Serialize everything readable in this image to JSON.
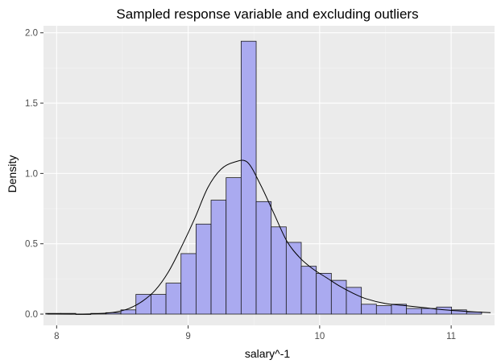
{
  "chart_data": {
    "type": "bar",
    "title": "Sampled response variable and excluding outliers",
    "xlabel": "salary^-1",
    "ylabel": "Density",
    "xlim": [
      7.9,
      11.33
    ],
    "ylim": [
      -0.08,
      2.05
    ],
    "xticks": [
      "8",
      "9",
      "10",
      "11"
    ],
    "xtick_values": [
      8,
      9,
      10,
      11
    ],
    "yticks": [
      "0.0",
      "0.5",
      "1.0",
      "1.5",
      "2.0"
    ],
    "ytick_values": [
      0,
      0.5,
      1.0,
      1.5,
      2.0
    ],
    "grid": true,
    "legend": "none",
    "bin_start": 7.917,
    "bin_width": 0.1143,
    "values": [
      0.005,
      0.005,
      0.0,
      0.005,
      0.01,
      0.03,
      0.14,
      0.14,
      0.22,
      0.43,
      0.64,
      0.81,
      0.97,
      1.94,
      0.8,
      0.62,
      0.51,
      0.34,
      0.29,
      0.24,
      0.19,
      0.07,
      0.06,
      0.07,
      0.04,
      0.04,
      0.05,
      0.03,
      0.015
    ],
    "density_curve": {
      "x": [
        7.93,
        8.2,
        8.35,
        8.45,
        8.55,
        8.65,
        8.75,
        8.85,
        8.95,
        9.05,
        9.15,
        9.25,
        9.35,
        9.45,
        9.55,
        9.65,
        9.75,
        9.85,
        9.95,
        10.05,
        10.15,
        10.25,
        10.35,
        10.5,
        10.65,
        10.8,
        10.95,
        11.1,
        11.3
      ],
      "y": [
        0.0,
        0.0,
        0.005,
        0.015,
        0.04,
        0.09,
        0.17,
        0.3,
        0.48,
        0.68,
        0.9,
        1.03,
        1.08,
        1.08,
        0.92,
        0.72,
        0.52,
        0.4,
        0.32,
        0.26,
        0.2,
        0.15,
        0.11,
        0.075,
        0.06,
        0.045,
        0.03,
        0.02,
        0.01
      ]
    },
    "colors": {
      "bar_fill": "#aaaaf0",
      "bar_outline": "#1a1a1a",
      "curve": "#000000",
      "panel": "#ebebeb",
      "grid_major": "#ffffff",
      "grid_minor": "#f4f4f4"
    }
  }
}
